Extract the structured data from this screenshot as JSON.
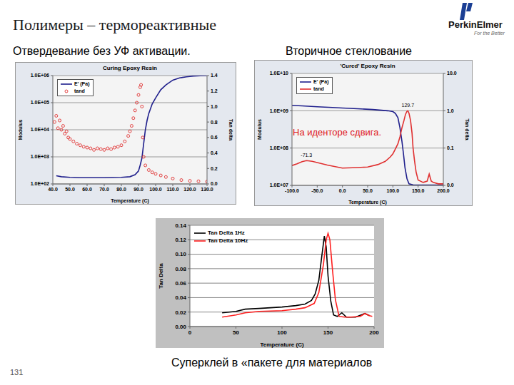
{
  "slide": {
    "title": "Полимеры – термореактивные",
    "logo": "PerkinElmer",
    "logo_tagline": "For the Better",
    "left_heading": "Отвердевание без УФ активации.",
    "right_heading": "Вторичное стеклование",
    "caption": "Суперклей в «пакете для материалов",
    "page_number": 131
  },
  "chart_data": [
    {
      "type": "line",
      "title": "Curing Epoxy Resin",
      "x_label": "Temperature (C)",
      "y_label": "Modulus",
      "y2_label": "Tan delta",
      "log": "y",
      "grid": true,
      "legend": "upper left",
      "xlim": [
        40,
        130
      ],
      "xticks": [
        {
          "value": 40,
          "label": "40.0"
        },
        {
          "value": 50,
          "label": "50.0"
        },
        {
          "value": 60,
          "label": "60.0"
        },
        {
          "value": 70,
          "label": "70.0"
        },
        {
          "value": 80,
          "label": "80.0"
        },
        {
          "value": 90,
          "label": "90.0"
        },
        {
          "value": 100,
          "label": "100.0"
        },
        {
          "value": 110,
          "label": "110.0"
        },
        {
          "value": 120,
          "label": "120.0"
        },
        {
          "value": 130,
          "label": "130.0"
        }
      ],
      "ylim": [
        100,
        1000000
      ],
      "yticks": [
        {
          "value": 100,
          "label": "1.0E+02"
        },
        {
          "value": 1000,
          "label": "1.0E+03"
        },
        {
          "value": 10000,
          "label": "1.0E+04"
        },
        {
          "value": 100000,
          "label": "1.0E+05"
        },
        {
          "value": 1000000,
          "label": "1.0E+06"
        }
      ],
      "y2lim": [
        0,
        1.4
      ],
      "y2ticks": [
        {
          "value": 0,
          "label": "0.0"
        },
        0.2,
        0.4,
        0.6,
        0.8,
        {
          "value": 1,
          "label": "1.0"
        },
        1.2,
        1.4
      ],
      "series": [
        {
          "name": "E' (Pa)",
          "color": "#1f1f8c",
          "type": "line",
          "marker": "none",
          "x": [
            42,
            45,
            50,
            55,
            60,
            65,
            70,
            75,
            80,
            85,
            88,
            90,
            91,
            92,
            93,
            94,
            95,
            96,
            98,
            100,
            103,
            106,
            110,
            114,
            118,
            122,
            126,
            130
          ],
          "values": [
            200,
            185,
            175,
            170,
            170,
            170,
            170,
            172,
            175,
            185,
            220,
            300,
            500,
            900,
            3000,
            10000,
            22000,
            40000,
            90000,
            150000,
            300000,
            450000,
            680000,
            820000,
            900000,
            960000,
            990000,
            1000000
          ]
        },
        {
          "name": "tand",
          "color": "#e03030",
          "type": "scatter",
          "marker": "circle",
          "axis": "y2",
          "x": [
            41,
            42,
            43,
            44,
            45,
            46,
            47,
            48,
            49,
            50,
            52,
            54,
            56,
            58,
            60,
            62,
            64,
            66,
            68,
            70,
            72,
            74,
            76,
            78,
            80,
            82,
            84,
            85,
            86,
            87,
            88,
            89,
            90,
            91,
            91.5,
            92,
            92.5,
            93,
            94,
            96,
            98,
            100,
            103,
            106,
            110,
            115,
            120,
            125,
            130
          ],
          "values": [
            0.8,
            0.88,
            0.72,
            0.82,
            0.7,
            0.75,
            0.65,
            0.68,
            0.6,
            0.58,
            0.55,
            0.52,
            0.5,
            0.48,
            0.47,
            0.46,
            0.44,
            0.46,
            0.45,
            0.44,
            0.46,
            0.45,
            0.47,
            0.48,
            0.5,
            0.55,
            0.62,
            0.68,
            0.75,
            0.85,
            0.95,
            1.05,
            1.15,
            1.25,
            1.28,
            1.0,
            0.6,
            0.35,
            0.24,
            0.18,
            0.15,
            0.13,
            0.11,
            0.09,
            0.07,
            0.05,
            0.04,
            0.035,
            0.03
          ]
        }
      ]
    },
    {
      "type": "line",
      "title": "'Cured' Epoxy Resin",
      "x_label": "Temperature (C)",
      "y_label": "Modulus",
      "y2_label": "Tan delta",
      "log": true,
      "grid": true,
      "legend": "upper left",
      "note": "На иденторе сдвига.",
      "annotations": [
        {
          "text": "129.7",
          "x": 129.7,
          "y": 1.0,
          "axis": "y2"
        },
        {
          "text": "-71.3",
          "x": -71.3,
          "y": 0.046,
          "axis": "y2"
        }
      ],
      "xlim": [
        -100,
        200
      ],
      "xticks": [
        {
          "value": -100,
          "label": "-100.0"
        },
        {
          "value": -50,
          "label": "-50.0"
        },
        {
          "value": 0,
          "label": "0.0"
        },
        {
          "value": 50,
          "label": "50.0"
        },
        {
          "value": 100,
          "label": "100.0"
        },
        {
          "value": 150,
          "label": "150.0"
        },
        {
          "value": 200,
          "label": "200.0"
        }
      ],
      "ylim": [
        10000000,
        10000000000
      ],
      "yticks": [
        {
          "value": 10000000,
          "label": "1.0E+07"
        },
        {
          "value": 100000000,
          "label": "1.0E+08"
        },
        {
          "value": 1000000000,
          "label": "1.0E+09"
        },
        {
          "value": 10000000000,
          "label": "1.0E+10"
        }
      ],
      "y2lim": [
        0.01,
        10
      ],
      "y2ticks": [
        {
          "value": 0.01,
          "label": "0.0"
        },
        0.1,
        {
          "value": 1,
          "label": "1.0"
        },
        {
          "value": 10,
          "label": "10.0"
        }
      ],
      "series": [
        {
          "name": "E' (Pa)",
          "color": "#1f1f8c",
          "type": "line",
          "marker": "none",
          "x": [
            -100,
            -80,
            -50,
            -20,
            0,
            30,
            60,
            90,
            100,
            105,
            110,
            114,
            118,
            121,
            124,
            128,
            132,
            140,
            160,
            180,
            200
          ],
          "values": [
            1400000000,
            1350000000,
            1280000000,
            1220000000,
            1180000000,
            1130000000,
            1080000000,
            1000000000,
            950000000,
            850000000,
            650000000,
            350000000,
            150000000,
            70000000,
            30000000,
            15000000,
            11000000,
            10300000,
            10200000,
            10200000,
            10200000
          ]
        },
        {
          "name": "tand",
          "color": "#e03030",
          "type": "line",
          "marker": "none",
          "axis": "y2",
          "x": [
            -100,
            -90,
            -80,
            -71.3,
            -60,
            -50,
            -30,
            0,
            30,
            50,
            70,
            85,
            95,
            100,
            105,
            110,
            114,
            118,
            122,
            125,
            128,
            129.7,
            132,
            135,
            138,
            140,
            143,
            146,
            150,
            160,
            168,
            172,
            176,
            180,
            190,
            200
          ],
          "values": [
            0.034,
            0.038,
            0.043,
            0.046,
            0.044,
            0.041,
            0.035,
            0.029,
            0.03,
            0.031,
            0.036,
            0.044,
            0.058,
            0.07,
            0.095,
            0.13,
            0.2,
            0.35,
            0.55,
            0.8,
            0.97,
            1.0,
            0.85,
            0.55,
            0.25,
            0.1,
            0.045,
            0.023,
            0.014,
            0.012,
            0.013,
            0.02,
            0.013,
            0.012,
            0.011,
            0.011
          ]
        }
      ]
    },
    {
      "type": "line",
      "x_label": "Temperature (C)",
      "y_label": "Tan Delta",
      "grid": true,
      "legend": "upper left",
      "xlim": [
        0,
        200
      ],
      "xticks": [
        0,
        50,
        100,
        150,
        200
      ],
      "ylim": [
        0,
        0.14
      ],
      "yticks": [
        {
          "value": 0,
          "label": "0.00"
        },
        0.02,
        0.04,
        0.06,
        0.08,
        {
          "value": 0.1,
          "label": "0.10"
        },
        0.12,
        0.14
      ],
      "series": [
        {
          "name": "Tan Delta 1Hz",
          "color": "#000000",
          "type": "line",
          "marker": "none",
          "x": [
            35,
            50,
            60,
            75,
            100,
            115,
            125,
            132,
            136,
            140,
            143,
            146,
            148,
            150,
            153,
            156,
            160,
            165,
            170,
            180,
            190,
            195
          ],
          "values": [
            0.019,
            0.021,
            0.024,
            0.025,
            0.027,
            0.029,
            0.031,
            0.036,
            0.045,
            0.064,
            0.095,
            0.125,
            0.11,
            0.07,
            0.035,
            0.016,
            0.014,
            0.019,
            0.013,
            0.013,
            0.018,
            0.015
          ]
        },
        {
          "name": "Tan Delta 10Hz",
          "color": "#ff2020",
          "type": "line",
          "marker": "none",
          "x": [
            35,
            50,
            60,
            75,
            100,
            115,
            125,
            135,
            140,
            145,
            148,
            150,
            152,
            155,
            158,
            162,
            168,
            175,
            185,
            190,
            195,
            198
          ],
          "values": [
            0.013,
            0.016,
            0.019,
            0.021,
            0.022,
            0.024,
            0.026,
            0.032,
            0.047,
            0.086,
            0.12,
            0.129,
            0.12,
            0.076,
            0.037,
            0.014,
            0.013,
            0.013,
            0.014,
            0.018,
            0.015,
            0.014
          ]
        }
      ]
    }
  ]
}
